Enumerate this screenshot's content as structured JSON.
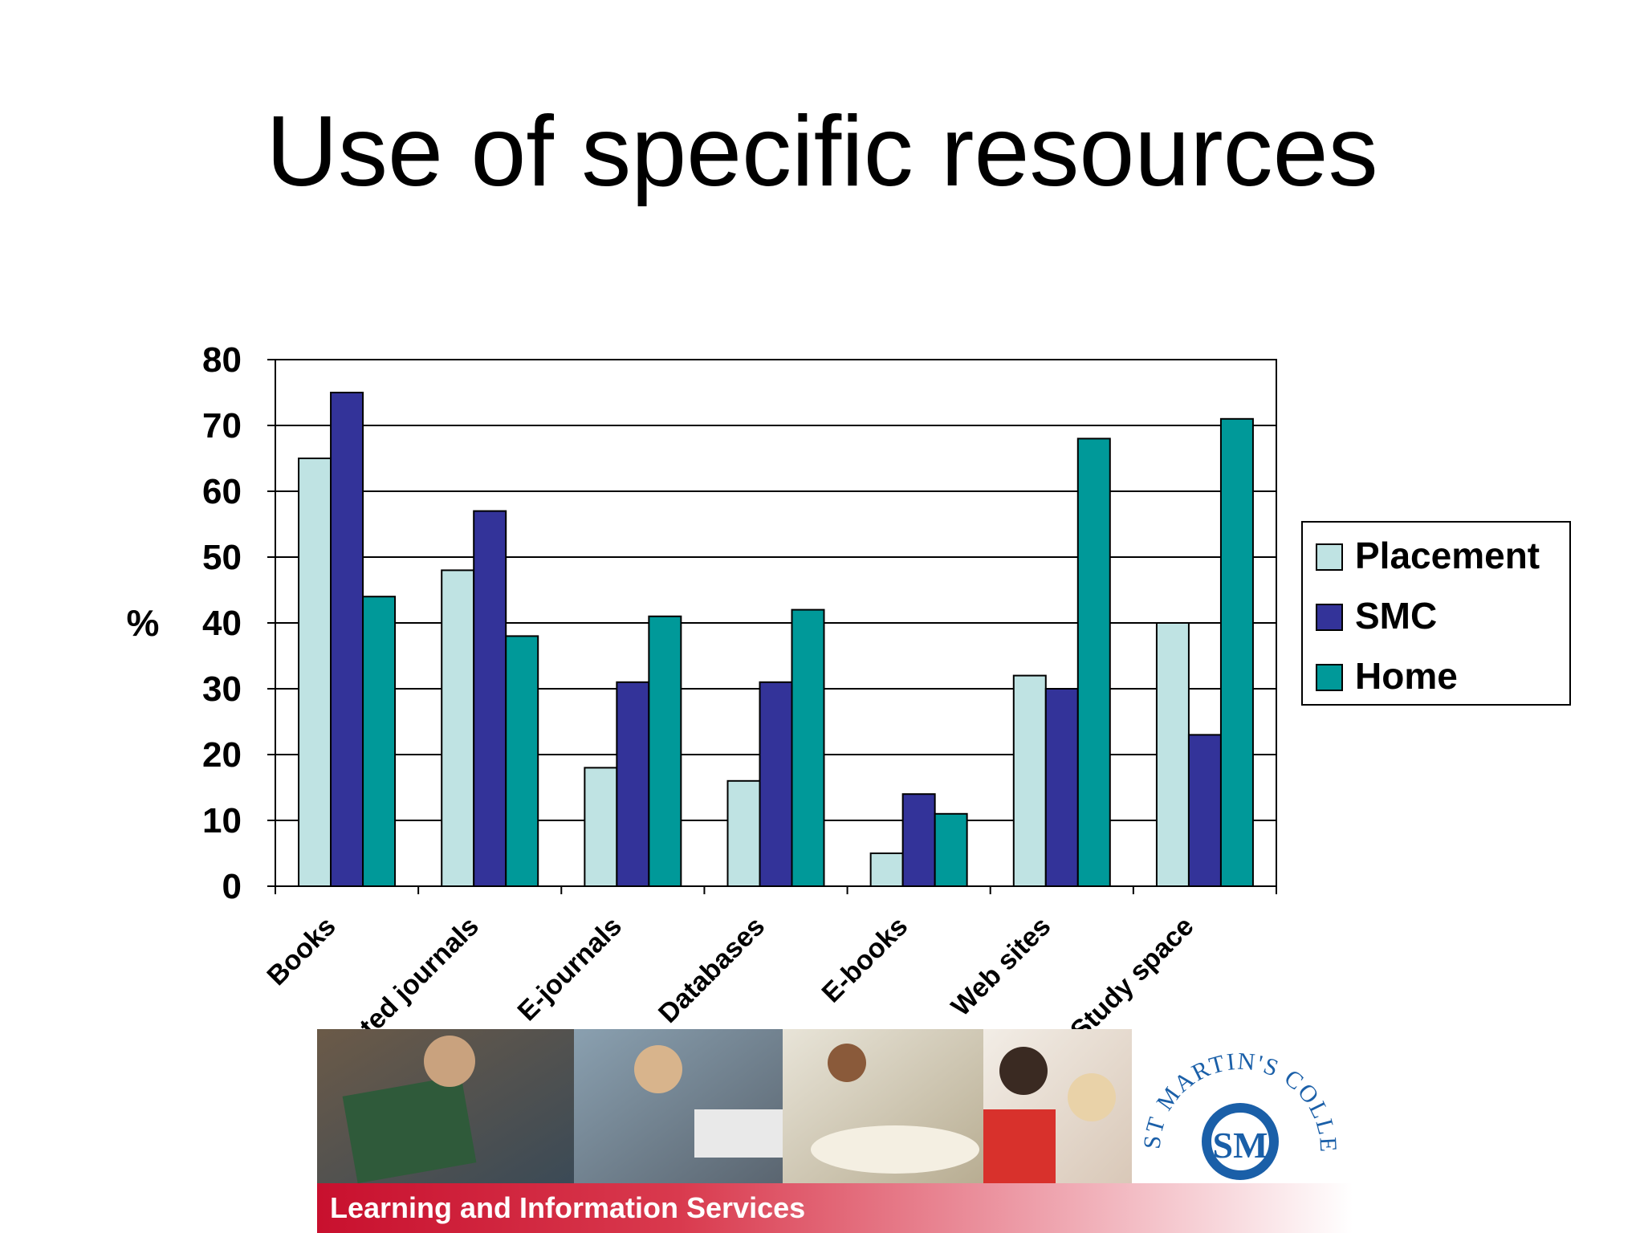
{
  "slide": {
    "title": "Use of specific resources"
  },
  "chart_data": {
    "type": "bar",
    "title": "",
    "xlabel": "",
    "ylabel": "%",
    "ylim": [
      0,
      80
    ],
    "yticks": [
      0,
      10,
      20,
      30,
      40,
      50,
      60,
      70,
      80
    ],
    "grid": true,
    "legend_position": "right",
    "categories": [
      "Books",
      "Printed journals",
      "E-journals",
      "Databases",
      "E-books",
      "Web sites",
      "Study space"
    ],
    "series": [
      {
        "name": "Placement",
        "color": "#bfe3e3",
        "values": [
          65,
          48,
          18,
          16,
          5,
          32,
          40
        ]
      },
      {
        "name": "SMC",
        "color": "#333399",
        "values": [
          75,
          57,
          31,
          31,
          14,
          30,
          23
        ]
      },
      {
        "name": "Home",
        "color": "#009999",
        "values": [
          44,
          38,
          41,
          42,
          11,
          68,
          71
        ]
      }
    ]
  },
  "banner": {
    "caption": "Learning and Information Services",
    "logo_text": "ST MARTIN'S COLLEGE",
    "logo_mark": "SM",
    "brand_color": "#c8102e",
    "logo_color": "#1a5fa8"
  }
}
